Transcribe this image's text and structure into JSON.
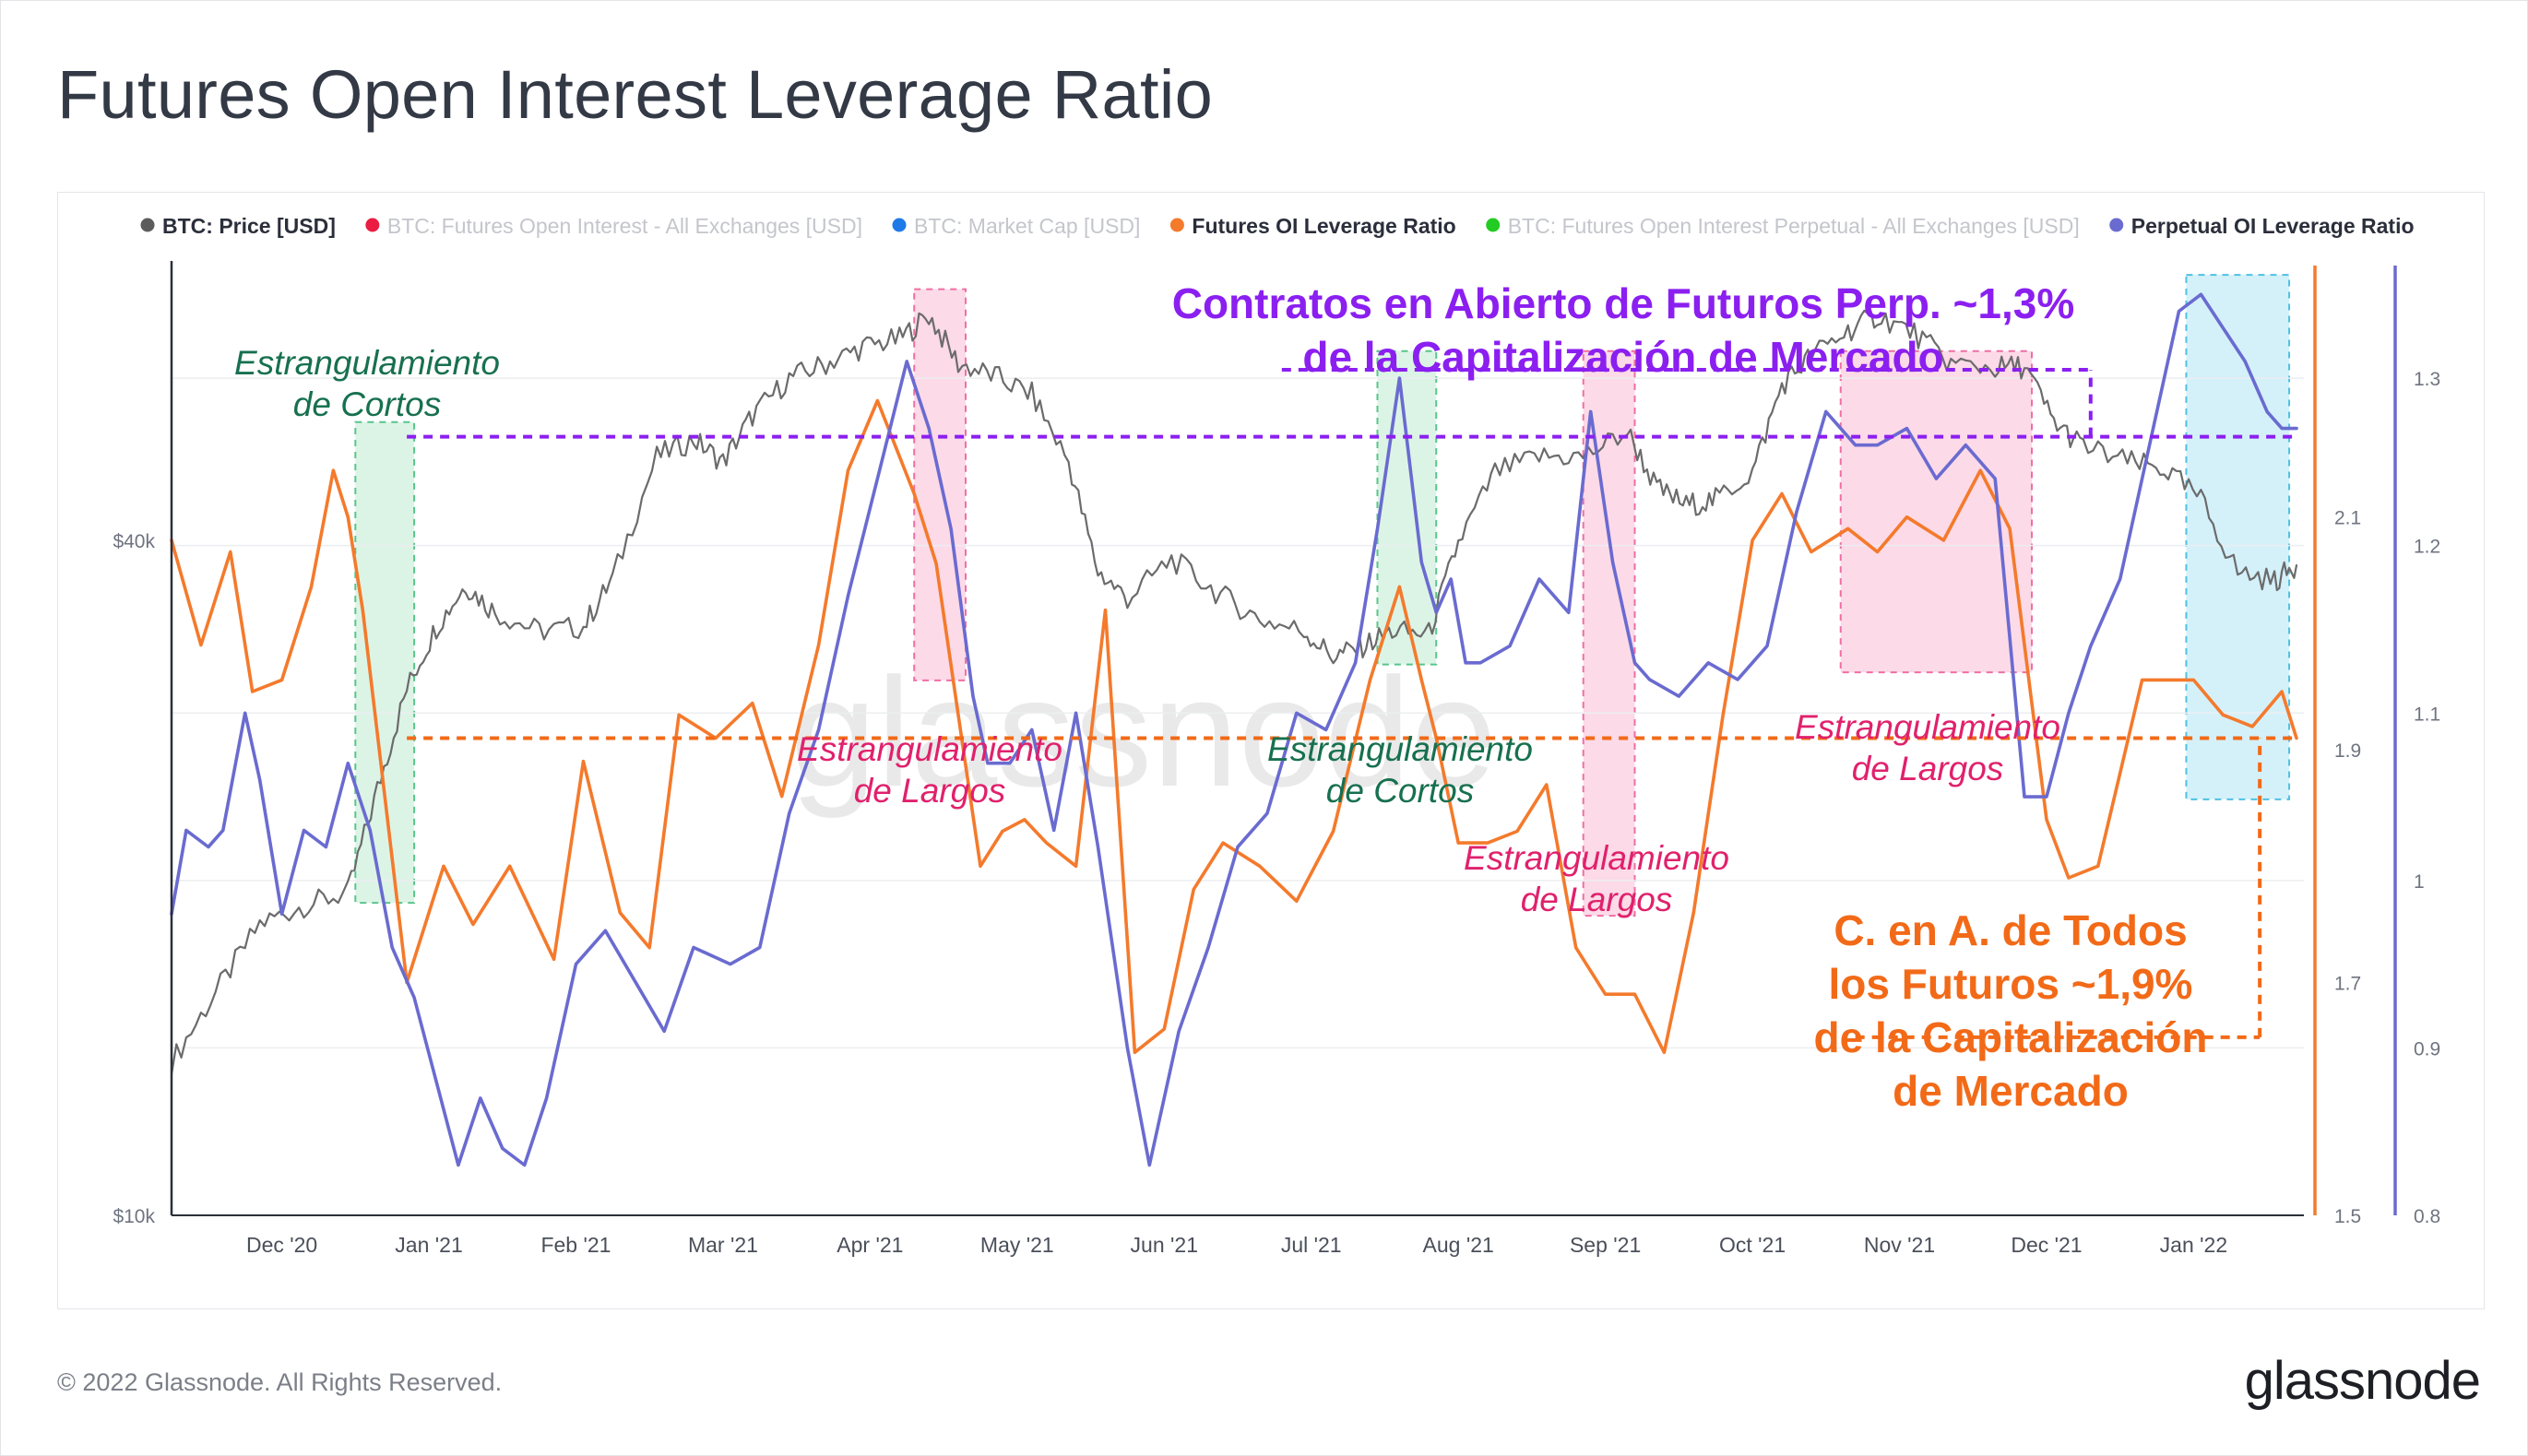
{
  "title": "Futures Open Interest Leverage Ratio",
  "footer": "© 2022 Glassnode. All Rights Reserved.",
  "brand": "glassnode",
  "watermark": "glassnode",
  "colors": {
    "price": "#707070",
    "futures_ratio": "#f47a2c",
    "perp_ratio": "#6a6bd0",
    "futures_oi_all": "#ea1c41",
    "market_cap": "#1f7ae8",
    "futures_oi_perp": "#22cc22",
    "green_band": "#d6f2e2",
    "pink_band": "#fcd3e4",
    "cyan_band": "#cdeef9",
    "purple_annot": "#8b1ff0",
    "orange_annot": "#f26a18"
  },
  "chart_data": {
    "type": "line",
    "title": "Futures Open Interest Leverage Ratio",
    "legend": [
      {
        "label": "BTC: Price [USD]",
        "color": "#5c5c5c",
        "active": true
      },
      {
        "label": "BTC: Futures Open Interest - All Exchanges [USD]",
        "color": "#ea1c41",
        "active": false
      },
      {
        "label": "BTC: Market Cap [USD]",
        "color": "#1f7ae8",
        "active": false
      },
      {
        "label": "Futures OI Leverage Ratio",
        "color": "#f47a2c",
        "active": true
      },
      {
        "label": "BTC: Futures Open Interest Perpetual - All Exchanges [USD]",
        "color": "#22cc22",
        "active": false
      },
      {
        "label": "Perpetual OI Leverage Ratio",
        "color": "#6a6bd0",
        "active": true
      }
    ],
    "x_axis": {
      "range": [
        0,
        14.5
      ],
      "ticks": [
        {
          "pos": 0.75,
          "label": "Dec '20"
        },
        {
          "pos": 1.75,
          "label": "Jan '21"
        },
        {
          "pos": 2.75,
          "label": "Feb '21"
        },
        {
          "pos": 3.75,
          "label": "Mar '21"
        },
        {
          "pos": 4.75,
          "label": "Apr '21"
        },
        {
          "pos": 5.75,
          "label": "May '21"
        },
        {
          "pos": 6.75,
          "label": "Jun '21"
        },
        {
          "pos": 7.75,
          "label": "Jul '21"
        },
        {
          "pos": 8.75,
          "label": "Aug '21"
        },
        {
          "pos": 9.75,
          "label": "Sep '21"
        },
        {
          "pos": 10.75,
          "label": "Oct '21"
        },
        {
          "pos": 11.75,
          "label": "Nov '21"
        },
        {
          "pos": 12.75,
          "label": "Dec '21"
        },
        {
          "pos": 13.75,
          "label": "Jan '22"
        }
      ]
    },
    "y_axes": [
      {
        "name": "price",
        "scale": "log",
        "range": [
          10000,
          71000
        ],
        "tick_values": [
          10000,
          40000
        ],
        "tick_labels": [
          "$10k",
          "$40k"
        ],
        "side": "left"
      },
      {
        "name": "futures_ratio",
        "scale": "linear",
        "range": [
          1.5,
          2.32
        ],
        "tick_values": [
          1.5,
          1.7,
          1.9,
          2.1
        ],
        "tick_labels": [
          "1.5",
          "1.7",
          "1.9",
          "2.1"
        ],
        "side": "right"
      },
      {
        "name": "perp_ratio",
        "scale": "linear",
        "range": [
          0.8,
          1.37
        ],
        "tick_values": [
          0.8,
          0.9,
          1,
          1.1,
          1.2,
          1.3
        ],
        "tick_labels": [
          "0.8",
          "0.9",
          "1",
          "1.1",
          "1.2",
          "1.3"
        ],
        "side": "right"
      }
    ],
    "series": [
      {
        "name": "BTC: Price [USD]",
        "axis": "price",
        "color": "#6b6b6b",
        "x": [
          0.0,
          0.3,
          0.6,
          0.9,
          1.2,
          1.4,
          1.6,
          1.8,
          2.0,
          2.2,
          2.5,
          2.8,
          3.0,
          3.3,
          3.55,
          3.75,
          3.95,
          4.2,
          4.45,
          4.7,
          4.95,
          5.15,
          5.35,
          5.6,
          5.85,
          6.1,
          6.3,
          6.5,
          6.8,
          7.1,
          7.4,
          7.7,
          7.9,
          8.1,
          8.3,
          8.55,
          8.75,
          9.0,
          9.3,
          9.6,
          9.9,
          10.1,
          10.3,
          10.5,
          10.75,
          10.95,
          11.15,
          11.4,
          11.6,
          11.85,
          12.1,
          12.4,
          12.6,
          12.8,
          13.0,
          13.3,
          13.55,
          13.8,
          14.05,
          14.3,
          14.45
        ],
        "y": [
          13700,
          15800,
          18200,
          18900,
          19400,
          24000,
          29500,
          33500,
          36500,
          34500,
          33200,
          33500,
          37000,
          47500,
          49200,
          47000,
          51700,
          55800,
          57500,
          59500,
          60500,
          63500,
          57500,
          56000,
          54000,
          47000,
          37500,
          35500,
          38500,
          36000,
          34000,
          33200,
          31500,
          32200,
          33200,
          33000,
          39800,
          46000,
          47500,
          47500,
          50000,
          44500,
          43000,
          43500,
          46000,
          55000,
          58500,
          61500,
          63500,
          61200,
          57500,
          57000,
          57200,
          51000,
          48500,
          47000,
          46300,
          43500,
          37500,
          36800,
          38000
        ]
      },
      {
        "name": "Futures OI Leverage Ratio",
        "axis": "futures_ratio",
        "color": "#f47a2c",
        "x": [
          0.0,
          0.2,
          0.4,
          0.55,
          0.75,
          0.95,
          1.1,
          1.2,
          1.3,
          1.45,
          1.6,
          1.85,
          2.05,
          2.3,
          2.6,
          2.8,
          3.05,
          3.25,
          3.45,
          3.7,
          3.95,
          4.15,
          4.4,
          4.6,
          4.8,
          5.05,
          5.2,
          5.35,
          5.5,
          5.65,
          5.8,
          5.95,
          6.15,
          6.35,
          6.55,
          6.75,
          6.95,
          7.15,
          7.4,
          7.65,
          7.9,
          8.15,
          8.35,
          8.5,
          8.6,
          8.75,
          8.95,
          9.15,
          9.35,
          9.55,
          9.75,
          9.95,
          10.15,
          10.35,
          10.55,
          10.75,
          10.95,
          11.15,
          11.4,
          11.6,
          11.8,
          12.05,
          12.3,
          12.5,
          12.65,
          12.75,
          12.9,
          13.1,
          13.25,
          13.4,
          13.55,
          13.75,
          13.95,
          14.15,
          14.35,
          14.45
        ],
        "y": [
          2.08,
          1.99,
          2.07,
          1.95,
          1.96,
          2.04,
          2.14,
          2.1,
          2.02,
          1.86,
          1.7,
          1.8,
          1.75,
          1.8,
          1.72,
          1.89,
          1.76,
          1.73,
          1.93,
          1.91,
          1.94,
          1.86,
          1.99,
          2.14,
          2.2,
          2.12,
          2.06,
          1.93,
          1.8,
          1.83,
          1.84,
          1.82,
          1.8,
          2.02,
          1.64,
          1.66,
          1.78,
          1.82,
          1.8,
          1.77,
          1.83,
          1.96,
          2.04,
          1.96,
          1.91,
          1.82,
          1.82,
          1.83,
          1.87,
          1.73,
          1.69,
          1.69,
          1.64,
          1.76,
          1.93,
          2.08,
          2.12,
          2.07,
          2.09,
          2.07,
          2.1,
          2.08,
          2.14,
          2.09,
          1.94,
          1.84,
          1.79,
          1.8,
          1.88,
          1.96,
          1.96,
          1.96,
          1.93,
          1.92,
          1.95,
          1.91
        ]
      },
      {
        "name": "Perpetual OI Leverage Ratio",
        "axis": "perp_ratio",
        "color": "#6a6bd0",
        "x": [
          0.0,
          0.1,
          0.25,
          0.35,
          0.5,
          0.6,
          0.75,
          0.9,
          1.05,
          1.2,
          1.35,
          1.5,
          1.65,
          1.8,
          1.95,
          2.1,
          2.25,
          2.4,
          2.55,
          2.75,
          2.95,
          3.15,
          3.35,
          3.55,
          3.8,
          4.0,
          4.2,
          4.4,
          4.6,
          4.8,
          5.0,
          5.15,
          5.3,
          5.45,
          5.55,
          5.7,
          5.85,
          6.0,
          6.15,
          6.3,
          6.5,
          6.65,
          6.85,
          7.05,
          7.25,
          7.45,
          7.65,
          7.85,
          8.05,
          8.2,
          8.35,
          8.5,
          8.6,
          8.7,
          8.8,
          8.9,
          9.1,
          9.3,
          9.5,
          9.65,
          9.8,
          9.95,
          10.05,
          10.25,
          10.45,
          10.65,
          10.85,
          11.05,
          11.25,
          11.45,
          11.6,
          11.8,
          12.0,
          12.2,
          12.4,
          12.6,
          12.75,
          12.9,
          13.05,
          13.25,
          13.45,
          13.65,
          13.8,
          13.95,
          14.1,
          14.25,
          14.35,
          14.45
        ],
        "y": [
          0.98,
          1.03,
          1.02,
          1.03,
          1.1,
          1.06,
          0.98,
          1.03,
          1.02,
          1.07,
          1.03,
          0.96,
          0.93,
          0.88,
          0.83,
          0.87,
          0.84,
          0.83,
          0.87,
          0.95,
          0.97,
          0.94,
          0.91,
          0.96,
          0.95,
          0.96,
          1.04,
          1.09,
          1.17,
          1.24,
          1.31,
          1.27,
          1.21,
          1.11,
          1.07,
          1.07,
          1.09,
          1.03,
          1.1,
          1.02,
          0.9,
          0.83,
          0.91,
          0.96,
          1.02,
          1.04,
          1.1,
          1.09,
          1.13,
          1.21,
          1.3,
          1.19,
          1.16,
          1.18,
          1.13,
          1.13,
          1.14,
          1.18,
          1.16,
          1.28,
          1.19,
          1.13,
          1.12,
          1.11,
          1.13,
          1.12,
          1.14,
          1.22,
          1.28,
          1.26,
          1.26,
          1.27,
          1.24,
          1.26,
          1.24,
          1.05,
          1.05,
          1.1,
          1.14,
          1.18,
          1.26,
          1.34,
          1.35,
          1.33,
          1.31,
          1.28,
          1.27,
          1.27
        ]
      }
    ],
    "bands": [
      {
        "kind": "green",
        "x0": 1.25,
        "x1": 1.65,
        "y_axis": "price",
        "y0": 19000,
        "y1": 51000
      },
      {
        "kind": "pink",
        "x0": 5.05,
        "x1": 5.4,
        "y_axis": "price",
        "y0": 30000,
        "y1": 67000
      },
      {
        "kind": "green",
        "x0": 8.2,
        "x1": 8.6,
        "y_axis": "price",
        "y0": 31000,
        "y1": 59000
      },
      {
        "kind": "pink",
        "x0": 9.6,
        "x1": 9.95,
        "y_axis": "price",
        "y0": 18500,
        "y1": 59000
      },
      {
        "kind": "pink",
        "x0": 11.35,
        "x1": 12.65,
        "y_axis": "price",
        "y0": 30500,
        "y1": 59000
      },
      {
        "kind": "cyan",
        "x0": 13.7,
        "x1": 14.4,
        "y_axis": "price",
        "y0": 23500,
        "y1": 69000
      }
    ],
    "reference_lines": [
      {
        "kind": "purple",
        "axis": "perp_ratio",
        "y": 1.265,
        "x0": 1.6,
        "x1": 14.45
      },
      {
        "kind": "purple",
        "axis": "perp_ratio",
        "y": 1.305,
        "x0": 7.55,
        "x1": 13.05
      },
      {
        "kind": "purple",
        "axis": "perp_ratio",
        "y0": 1.265,
        "y1": 1.305,
        "x": 13.05
      },
      {
        "kind": "orange",
        "axis": "futures_ratio",
        "y": 1.91,
        "x0": 1.6,
        "x1": 14.45
      },
      {
        "kind": "orange",
        "axis": "futures_ratio",
        "y": 1.653,
        "x0": 11.45,
        "x1": 14.2
      },
      {
        "kind": "orange",
        "axis": "futures_ratio",
        "y0": 1.653,
        "y1": 1.91,
        "x": 14.2
      }
    ],
    "annotations": [
      {
        "id": "ann1",
        "kind": "green",
        "lines": [
          "Estrangulamiento",
          "de Cortos"
        ]
      },
      {
        "id": "ann2",
        "kind": "pink",
        "lines": [
          "Estrangulamiento",
          "de Largos"
        ]
      },
      {
        "id": "ann3",
        "kind": "green",
        "lines": [
          "Estrangulamiento",
          "de Cortos"
        ]
      },
      {
        "id": "ann4",
        "kind": "pink",
        "lines": [
          "Estrangulamiento",
          "de Largos"
        ]
      },
      {
        "id": "ann5",
        "kind": "pink",
        "lines": [
          "Estrangulamiento",
          "de Largos"
        ]
      },
      {
        "id": "ann6",
        "kind": "purple",
        "lines": [
          "Contratos en Abierto de Futuros Perp. ~1,3%",
          "de la Capitalización de Mercado"
        ]
      },
      {
        "id": "ann7",
        "kind": "orange",
        "lines": [
          "C. en A. de Todos",
          "los Futuros ~1,9%",
          "de la Capitalización",
          "de Mercado"
        ]
      }
    ]
  }
}
